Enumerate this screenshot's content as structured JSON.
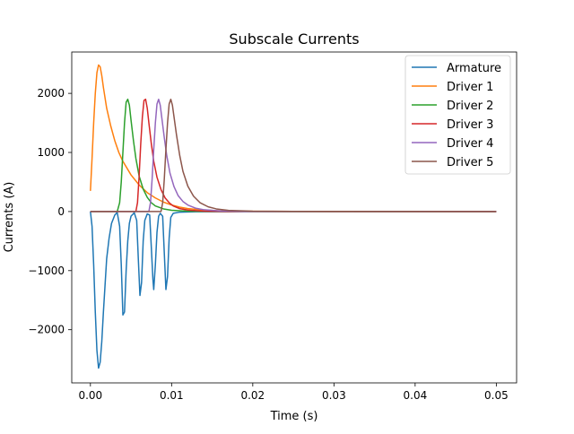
{
  "chart_data": {
    "type": "line",
    "title": "Subscale Currents",
    "xlabel": "Time (s)",
    "ylabel": "Currents (A)",
    "xlim": [
      -0.0023,
      0.0525
    ],
    "ylim": [
      -2900,
      2700
    ],
    "grid": false,
    "legend_position": "top-right",
    "x_ticks": [
      {
        "value": 0.0,
        "label": "0.00"
      },
      {
        "value": 0.01,
        "label": "0.01"
      },
      {
        "value": 0.02,
        "label": "0.02"
      },
      {
        "value": 0.03,
        "label": "0.03"
      },
      {
        "value": 0.04,
        "label": "0.04"
      },
      {
        "value": 0.05,
        "label": "0.05"
      }
    ],
    "y_ticks": [
      {
        "value": -2000,
        "label": "−2000"
      },
      {
        "value": -1000,
        "label": "−1000"
      },
      {
        "value": 0,
        "label": "0"
      },
      {
        "value": 1000,
        "label": "1000"
      },
      {
        "value": 2000,
        "label": "2000"
      }
    ],
    "series": [
      {
        "name": "Armature",
        "color": "#1f77b4",
        "points": [
          [
            0.0,
            0
          ],
          [
            0.0002,
            -250
          ],
          [
            0.0004,
            -900
          ],
          [
            0.0006,
            -1700
          ],
          [
            0.0008,
            -2350
          ],
          [
            0.001,
            -2650
          ],
          [
            0.0012,
            -2550
          ],
          [
            0.0014,
            -2200
          ],
          [
            0.0016,
            -1700
          ],
          [
            0.0018,
            -1250
          ],
          [
            0.002,
            -800
          ],
          [
            0.0023,
            -450
          ],
          [
            0.0026,
            -200
          ],
          [
            0.003,
            -60
          ],
          [
            0.0033,
            -15
          ],
          [
            0.0036,
            -250
          ],
          [
            0.0038,
            -900
          ],
          [
            0.004,
            -1750
          ],
          [
            0.0042,
            -1700
          ],
          [
            0.0044,
            -1000
          ],
          [
            0.0046,
            -500
          ],
          [
            0.0048,
            -200
          ],
          [
            0.005,
            -80
          ],
          [
            0.0054,
            -20
          ],
          [
            0.0057,
            -150
          ],
          [
            0.0059,
            -800
          ],
          [
            0.0061,
            -1420
          ],
          [
            0.0063,
            -1200
          ],
          [
            0.0065,
            -500
          ],
          [
            0.0067,
            -150
          ],
          [
            0.007,
            -40
          ],
          [
            0.0073,
            -60
          ],
          [
            0.0075,
            -600
          ],
          [
            0.0077,
            -1150
          ],
          [
            0.0078,
            -1320
          ],
          [
            0.008,
            -900
          ],
          [
            0.0082,
            -350
          ],
          [
            0.0084,
            -80
          ],
          [
            0.0086,
            -30
          ],
          [
            0.0089,
            -80
          ],
          [
            0.0091,
            -700
          ],
          [
            0.0093,
            -1320
          ],
          [
            0.0095,
            -1100
          ],
          [
            0.0097,
            -450
          ],
          [
            0.0099,
            -100
          ],
          [
            0.0102,
            -30
          ],
          [
            0.011,
            -10
          ],
          [
            0.013,
            -3
          ],
          [
            0.02,
            0
          ],
          [
            0.05,
            0
          ]
        ]
      },
      {
        "name": "Driver 1",
        "color": "#ff7f0e",
        "points": [
          [
            0.0,
            350
          ],
          [
            0.0002,
            900
          ],
          [
            0.0004,
            1500
          ],
          [
            0.0006,
            2000
          ],
          [
            0.0008,
            2350
          ],
          [
            0.001,
            2480
          ],
          [
            0.0012,
            2450
          ],
          [
            0.0014,
            2300
          ],
          [
            0.0016,
            2100
          ],
          [
            0.002,
            1750
          ],
          [
            0.0025,
            1450
          ],
          [
            0.003,
            1200
          ],
          [
            0.0035,
            1000
          ],
          [
            0.004,
            850
          ],
          [
            0.005,
            620
          ],
          [
            0.006,
            450
          ],
          [
            0.007,
            320
          ],
          [
            0.008,
            230
          ],
          [
            0.009,
            160
          ],
          [
            0.01,
            110
          ],
          [
            0.011,
            75
          ],
          [
            0.012,
            50
          ],
          [
            0.014,
            25
          ],
          [
            0.016,
            12
          ],
          [
            0.02,
            4
          ],
          [
            0.03,
            1
          ],
          [
            0.05,
            0
          ]
        ]
      },
      {
        "name": "Driver 2",
        "color": "#2ca02c",
        "points": [
          [
            0.0,
            0
          ],
          [
            0.0033,
            0
          ],
          [
            0.0036,
            150
          ],
          [
            0.0038,
            500
          ],
          [
            0.004,
            1000
          ],
          [
            0.0042,
            1500
          ],
          [
            0.0044,
            1850
          ],
          [
            0.0046,
            1900
          ],
          [
            0.0048,
            1800
          ],
          [
            0.005,
            1550
          ],
          [
            0.0053,
            1200
          ],
          [
            0.0056,
            900
          ],
          [
            0.006,
            600
          ],
          [
            0.0065,
            380
          ],
          [
            0.007,
            240
          ],
          [
            0.0075,
            150
          ],
          [
            0.008,
            95
          ],
          [
            0.009,
            45
          ],
          [
            0.01,
            22
          ],
          [
            0.012,
            6
          ],
          [
            0.015,
            1
          ],
          [
            0.05,
            0
          ]
        ]
      },
      {
        "name": "Driver 3",
        "color": "#d62728",
        "points": [
          [
            0.0,
            0
          ],
          [
            0.0056,
            0
          ],
          [
            0.0058,
            150
          ],
          [
            0.006,
            600
          ],
          [
            0.0062,
            1150
          ],
          [
            0.0064,
            1600
          ],
          [
            0.0066,
            1880
          ],
          [
            0.0068,
            1900
          ],
          [
            0.007,
            1750
          ],
          [
            0.0072,
            1500
          ],
          [
            0.0075,
            1150
          ],
          [
            0.0078,
            850
          ],
          [
            0.0082,
            580
          ],
          [
            0.0087,
            370
          ],
          [
            0.0092,
            230
          ],
          [
            0.0097,
            150
          ],
          [
            0.0102,
            95
          ],
          [
            0.011,
            50
          ],
          [
            0.012,
            25
          ],
          [
            0.014,
            7
          ],
          [
            0.017,
            1
          ],
          [
            0.05,
            0
          ]
        ]
      },
      {
        "name": "Driver 4",
        "color": "#9467bd",
        "points": [
          [
            0.0,
            0
          ],
          [
            0.0072,
            0
          ],
          [
            0.0074,
            150
          ],
          [
            0.0076,
            550
          ],
          [
            0.0078,
            1050
          ],
          [
            0.008,
            1500
          ],
          [
            0.0082,
            1820
          ],
          [
            0.0084,
            1900
          ],
          [
            0.0086,
            1800
          ],
          [
            0.0088,
            1580
          ],
          [
            0.0091,
            1250
          ],
          [
            0.0094,
            950
          ],
          [
            0.0098,
            650
          ],
          [
            0.0103,
            420
          ],
          [
            0.0108,
            270
          ],
          [
            0.0114,
            170
          ],
          [
            0.012,
            110
          ],
          [
            0.013,
            55
          ],
          [
            0.014,
            30
          ],
          [
            0.016,
            10
          ],
          [
            0.019,
            2
          ],
          [
            0.05,
            0
          ]
        ]
      },
      {
        "name": "Driver 5",
        "color": "#8c564b",
        "points": [
          [
            0.0,
            0
          ],
          [
            0.0087,
            0
          ],
          [
            0.0089,
            150
          ],
          [
            0.0091,
            550
          ],
          [
            0.0093,
            1050
          ],
          [
            0.0095,
            1500
          ],
          [
            0.0097,
            1820
          ],
          [
            0.0099,
            1900
          ],
          [
            0.0101,
            1800
          ],
          [
            0.0103,
            1600
          ],
          [
            0.0106,
            1300
          ],
          [
            0.011,
            950
          ],
          [
            0.0114,
            680
          ],
          [
            0.012,
            430
          ],
          [
            0.0127,
            260
          ],
          [
            0.0135,
            150
          ],
          [
            0.0145,
            80
          ],
          [
            0.0155,
            45
          ],
          [
            0.017,
            20
          ],
          [
            0.02,
            6
          ],
          [
            0.025,
            2
          ],
          [
            0.05,
            0
          ]
        ]
      }
    ]
  }
}
